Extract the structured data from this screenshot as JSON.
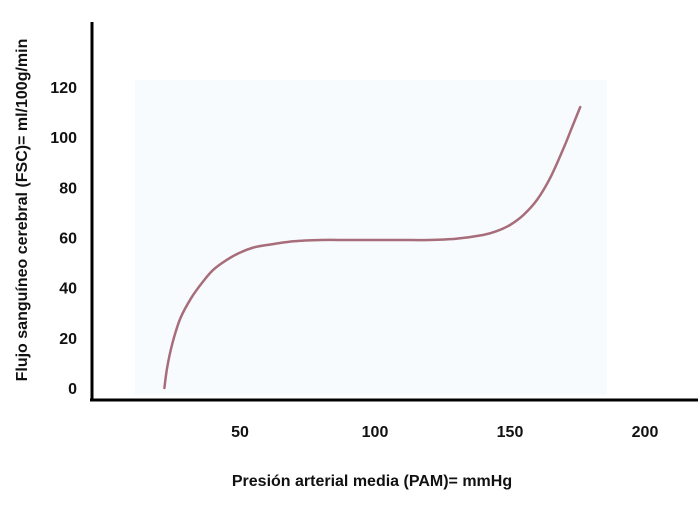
{
  "chart_data": {
    "type": "line",
    "xlabel": "Presión arterial media (PAM)= mmHg",
    "ylabel": "Flujo sanguíneo cerebral (FSC)=  ml/100g/min",
    "x_ticks": [
      50,
      100,
      150,
      200
    ],
    "y_ticks": [
      0,
      20,
      40,
      60,
      80,
      100,
      120
    ],
    "grid": false,
    "legend": "none",
    "colors": {
      "line": "#a86d7a",
      "axis": "#000000",
      "plot_background": "#f8fbfe"
    },
    "series": [
      {
        "x": [
          22,
          23,
          25,
          28,
          32,
          36,
          40,
          45,
          50,
          55,
          60,
          70,
          80,
          90,
          100,
          110,
          120,
          130,
          140,
          145,
          150,
          155,
          160,
          165,
          170,
          173,
          176
        ],
        "values": [
          0,
          8,
          18,
          28,
          36,
          42,
          47,
          51,
          54,
          56,
          57,
          58.5,
          59,
          59,
          59,
          59,
          59,
          59.5,
          61,
          62.5,
          65,
          69,
          75,
          84,
          96,
          104,
          112
        ]
      }
    ]
  }
}
